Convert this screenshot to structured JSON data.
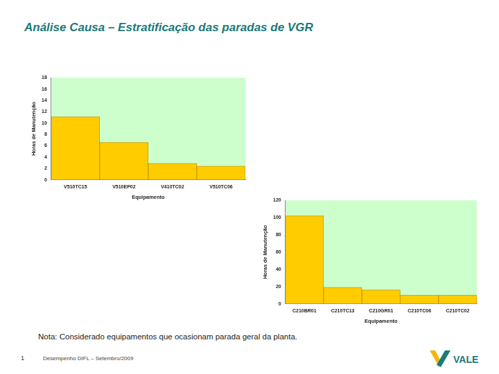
{
  "header": {
    "title": "Análise Causa – Estratificação das paradas de VGR"
  },
  "chart_data": [
    {
      "type": "bar",
      "categories": [
        "V510TC15",
        "V510EP02",
        "V410TC02",
        "V510TC06"
      ],
      "values": [
        11.1,
        6.6,
        2.9,
        2.4
      ],
      "color": "#ffcc00",
      "x_label": "Equipamento",
      "y_label": "Horas de Manutenção",
      "ylim": [
        0,
        18
      ],
      "yticks": [
        0,
        2,
        4,
        6,
        8,
        10,
        12,
        14,
        16,
        18
      ],
      "grid": false
    },
    {
      "type": "bar",
      "categories": [
        "C210BR01",
        "C210TC13",
        "C210GR01",
        "C210TC06",
        "C210TC02"
      ],
      "values": [
        102,
        19,
        16,
        10,
        10
      ],
      "color": "#ffcc00",
      "x_label": "Equipamento",
      "y_label": "Horas de Manutenção",
      "ylim": [
        0,
        120
      ],
      "yticks": [
        0,
        20,
        40,
        60,
        80,
        100,
        120
      ],
      "grid": false
    }
  ],
  "note": "Nota: Considerado equipamentos que ocasionam parada geral da planta.",
  "footer": {
    "page": "1",
    "text": "Desempenho DIFL – Setembro/2009",
    "logo": "VALE"
  }
}
